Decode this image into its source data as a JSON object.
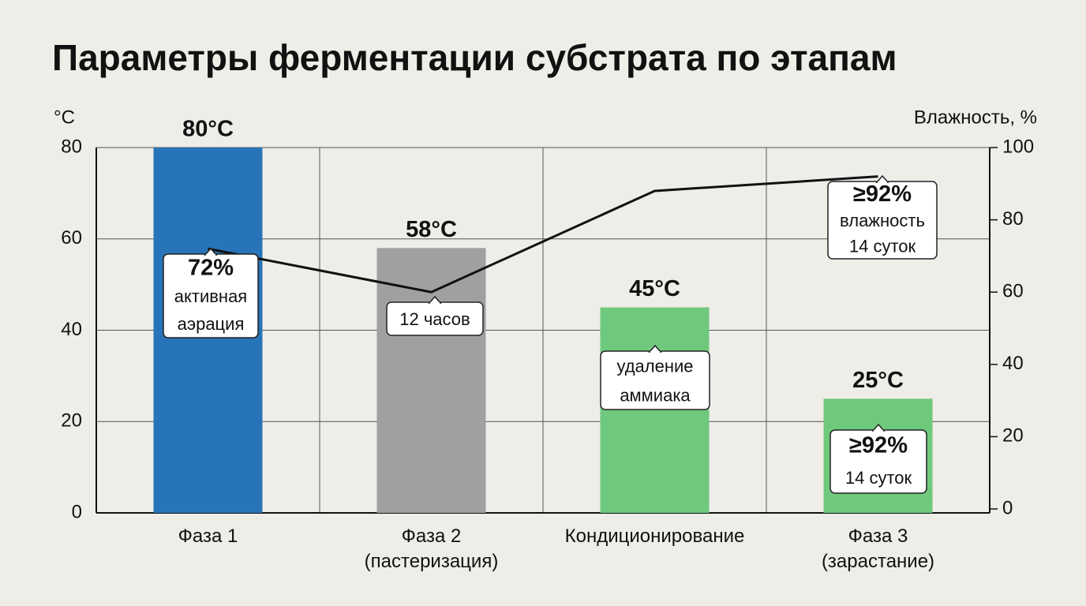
{
  "chart_data": {
    "type": "combo",
    "title": "Параметры ферментации субстрата по этапам",
    "y_label": "°C",
    "y2_label": "Влажность, %",
    "categories": [
      "Фаза 1",
      "Фаза 2\n(пастеризация)",
      "Кондиционирование",
      "Фаза 3\n(зарастание)"
    ],
    "ylim": [
      0,
      80
    ],
    "yticks": [
      0,
      20,
      40,
      60,
      80
    ],
    "y2lim": [
      0,
      100
    ],
    "y2ticks": [
      0,
      20,
      40,
      60,
      80,
      100
    ],
    "grid": true,
    "series": [
      {
        "type": "bar",
        "colors": [
          "#2874b8",
          "#a0a0a0",
          "#6fc97d",
          "#6fc97d"
        ],
        "values": [
          80,
          58,
          45,
          25
        ],
        "value_labels": [
          "80°C",
          "58°C",
          "45°C",
          "25°C"
        ]
      },
      {
        "type": "line",
        "axis": "y2",
        "color": "#111111",
        "values": [
          72,
          60,
          88,
          92
        ]
      }
    ],
    "annotations": [
      [
        "72%",
        "активная",
        "аэрация"
      ],
      [
        "12 часов"
      ],
      [
        "удаление",
        "аммиака"
      ],
      [
        "≥92%",
        "влажность",
        "14 суток"
      ],
      [
        "≥92%",
        "14 суток"
      ]
    ]
  }
}
